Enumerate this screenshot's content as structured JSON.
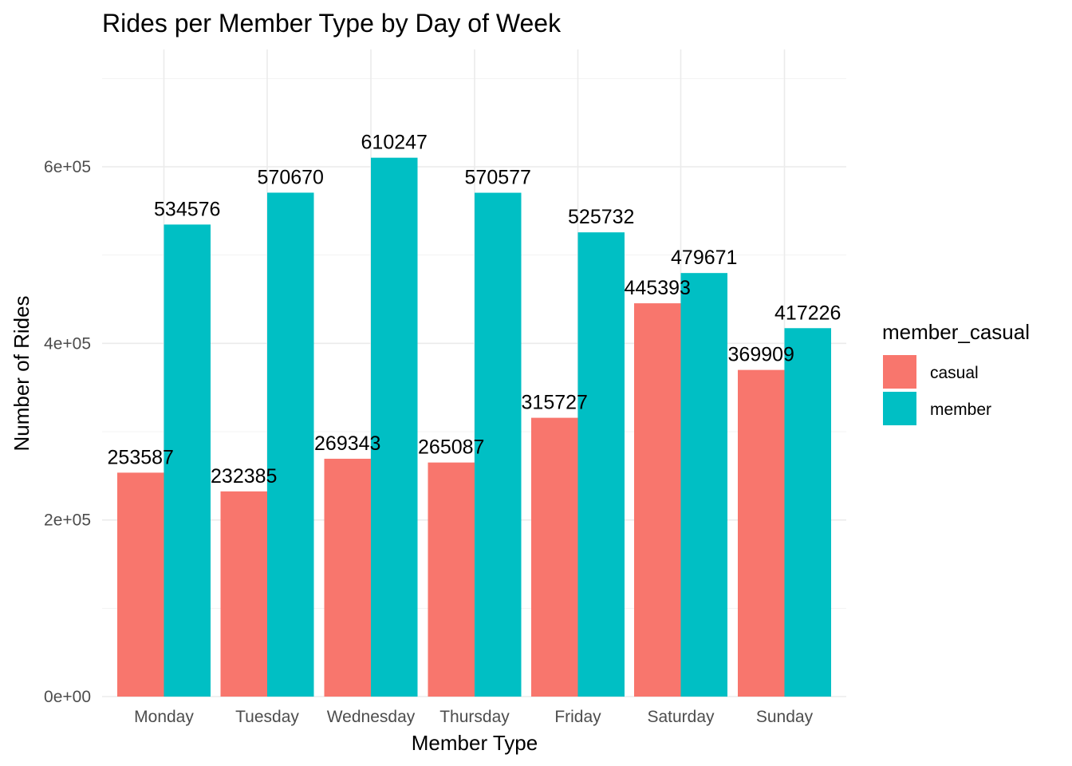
{
  "chart_data": {
    "type": "bar",
    "title": "Rides per Member Type by Day of Week",
    "xlabel": "Member Type",
    "ylabel": "Number of Rides",
    "categories": [
      "Monday",
      "Tuesday",
      "Wednesday",
      "Thursday",
      "Friday",
      "Saturday",
      "Sunday"
    ],
    "series": [
      {
        "name": "casual",
        "color": "#F8766D",
        "values": [
          253587,
          232385,
          269343,
          265087,
          315727,
          445393,
          369909
        ]
      },
      {
        "name": "member",
        "color": "#00BFC4",
        "values": [
          534576,
          570670,
          610247,
          570577,
          525732,
          479671,
          417226
        ]
      }
    ],
    "ylim": [
      0,
      700000
    ],
    "yticks": [
      0,
      200000,
      400000,
      600000
    ],
    "ytick_labels": [
      "0e+00",
      "2e+05",
      "4e+05",
      "6e+05"
    ],
    "legend": {
      "title": "member_casual",
      "position": "right"
    },
    "grid": true
  }
}
